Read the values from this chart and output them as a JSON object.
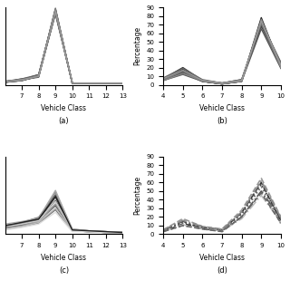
{
  "subplot_a": {
    "x": [
      6,
      7,
      8,
      9,
      10,
      11,
      12,
      13
    ],
    "xlabel": "Vehicle Class",
    "label": "(a)",
    "xlim": [
      6,
      13
    ],
    "ylim": [
      -2,
      90
    ],
    "yticks": [],
    "xticks": [
      7,
      8,
      9,
      10,
      11,
      12,
      13
    ],
    "curves": [
      [
        1,
        3,
        8,
        88,
        0,
        0,
        0,
        0
      ],
      [
        2,
        4,
        9,
        85,
        0,
        0,
        0,
        0
      ],
      [
        1,
        4,
        10,
        87,
        0,
        0,
        0,
        0
      ],
      [
        2,
        5,
        8,
        83,
        0,
        0,
        0,
        0
      ],
      [
        1,
        3,
        9,
        86,
        0,
        0,
        0,
        0
      ],
      [
        2,
        4,
        7,
        84,
        0,
        0,
        0,
        0
      ],
      [
        1,
        5,
        10,
        82,
        0,
        0,
        0,
        0
      ],
      [
        2,
        4,
        8,
        89,
        0,
        0,
        0,
        0
      ],
      [
        1,
        3,
        9,
        87,
        0,
        0,
        0,
        0
      ],
      [
        2,
        4,
        8,
        85,
        0,
        0,
        0,
        0
      ]
    ],
    "colors": [
      "#000000",
      "#111111",
      "#222222",
      "#333333",
      "#444444",
      "#555555",
      "#666666",
      "#777777",
      "#888888",
      "#999999"
    ],
    "linestyles": [
      "-",
      "-",
      "-",
      "-",
      "-",
      "-",
      "-",
      "-",
      "-",
      "-"
    ],
    "linewidths": [
      1.0,
      1.0,
      1.0,
      1.0,
      1.0,
      1.0,
      1.0,
      1.0,
      1.0,
      1.0
    ]
  },
  "subplot_b": {
    "x": [
      4,
      5,
      6,
      7,
      8,
      9,
      10
    ],
    "xlabel": "Vehicle Class",
    "ylabel": "Percentage",
    "label": "(b)",
    "xlim": [
      4,
      10
    ],
    "ylim": [
      0,
      90
    ],
    "yticks": [
      0,
      10,
      20,
      30,
      40,
      50,
      60,
      70,
      80,
      90
    ],
    "xticks": [
      4,
      5,
      6,
      7,
      8,
      9,
      10
    ],
    "curves": [
      [
        5,
        15,
        4,
        1,
        4,
        75,
        22
      ],
      [
        6,
        18,
        5,
        2,
        5,
        72,
        25
      ],
      [
        5,
        14,
        4,
        1,
        4,
        78,
        20
      ],
      [
        7,
        20,
        5,
        2,
        6,
        70,
        24
      ],
      [
        6,
        16,
        4,
        1,
        5,
        68,
        22
      ],
      [
        5,
        12,
        4,
        1,
        4,
        65,
        19
      ],
      [
        8,
        19,
        6,
        2,
        6,
        73,
        26
      ],
      [
        6,
        15,
        4,
        1,
        5,
        71,
        21
      ],
      [
        5,
        13,
        5,
        1,
        4,
        76,
        20
      ],
      [
        7,
        17,
        5,
        2,
        5,
        74,
        23
      ]
    ],
    "colors": [
      "#000000",
      "#111111",
      "#222222",
      "#333333",
      "#444444",
      "#555555",
      "#666666",
      "#777777",
      "#888888",
      "#999999"
    ],
    "linestyles": [
      "-",
      "-",
      "-",
      "-",
      "-",
      "-",
      "-",
      "-",
      "-",
      "-"
    ],
    "linewidths": [
      1.0,
      1.0,
      1.0,
      1.0,
      1.0,
      1.0,
      1.0,
      1.0,
      1.0,
      1.0
    ]
  },
  "subplot_c": {
    "x": [
      6,
      7,
      8,
      9,
      10,
      11,
      12,
      13
    ],
    "xlabel": "Vehicle Class",
    "label": "(c)",
    "xlim": [
      6,
      13
    ],
    "ylim": [
      -2,
      90
    ],
    "yticks": [],
    "xticks": [
      7,
      8,
      9,
      10,
      11,
      12,
      13
    ],
    "curves": [
      [
        6,
        8,
        12,
        38,
        2,
        1,
        0,
        0
      ],
      [
        8,
        10,
        15,
        42,
        3,
        1,
        1,
        0
      ],
      [
        5,
        9,
        14,
        32,
        2,
        1,
        0,
        0
      ],
      [
        7,
        12,
        18,
        45,
        3,
        2,
        1,
        0
      ],
      [
        4,
        7,
        11,
        27,
        2,
        1,
        0,
        0
      ],
      [
        9,
        11,
        16,
        48,
        4,
        2,
        1,
        0
      ],
      [
        5,
        8,
        13,
        34,
        2,
        1,
        0,
        0
      ],
      [
        10,
        13,
        17,
        50,
        4,
        2,
        1,
        0
      ],
      [
        4,
        7,
        12,
        29,
        2,
        1,
        0,
        0
      ],
      [
        7,
        10,
        14,
        37,
        3,
        1,
        0,
        0
      ],
      [
        3,
        6,
        10,
        24,
        1,
        1,
        0,
        0
      ],
      [
        8,
        12,
        16,
        43,
        3,
        2,
        1,
        0
      ]
    ],
    "colors": [
      "#333333",
      "#444444",
      "#555555",
      "#666666",
      "#777777",
      "#888888",
      "#999999",
      "#aaaaaa",
      "#bbbbbb",
      "#cccccc",
      "#dddddd",
      "#222222"
    ],
    "linestyles": [
      "-",
      "-",
      "-",
      "-",
      "-",
      "-",
      "-",
      "-",
      "-",
      "-",
      "-",
      "-"
    ],
    "linewidths": [
      1.0,
      1.0,
      1.0,
      1.0,
      1.0,
      1.0,
      1.0,
      1.0,
      1.0,
      1.0,
      1.0,
      1.0
    ]
  },
  "subplot_d": {
    "x": [
      4,
      5,
      6,
      7,
      8,
      9,
      10
    ],
    "xlabel": "Vehicle Class",
    "ylabel": "Percentage",
    "label": "(d)",
    "xlim": [
      4,
      10
    ],
    "ylim": [
      0,
      90
    ],
    "yticks": [
      0,
      10,
      20,
      30,
      40,
      50,
      60,
      70,
      80,
      90
    ],
    "xticks": [
      4,
      5,
      6,
      7,
      8,
      9,
      10
    ],
    "curves": [
      [
        3,
        12,
        8,
        5,
        25,
        60,
        15
      ],
      [
        4,
        15,
        6,
        4,
        20,
        50,
        18
      ],
      [
        3,
        10,
        7,
        3,
        22,
        55,
        12
      ],
      [
        5,
        18,
        9,
        6,
        28,
        65,
        20
      ],
      [
        3,
        11,
        6,
        4,
        18,
        45,
        14
      ],
      [
        4,
        14,
        8,
        5,
        24,
        58,
        17
      ],
      [
        3,
        10,
        6,
        3,
        20,
        48,
        13
      ],
      [
        5,
        16,
        9,
        5,
        26,
        62,
        19
      ]
    ],
    "colors": [
      "#333333",
      "#555555",
      "#777777",
      "#999999",
      "#bbbbbb",
      "#444444",
      "#666666",
      "#888888"
    ],
    "linestyles": [
      "--",
      "-.",
      ":",
      "--",
      "-.",
      ":",
      "--",
      "-."
    ],
    "linewidths": [
      1.2,
      1.2,
      1.2,
      1.2,
      1.2,
      1.2,
      1.2,
      1.2
    ]
  }
}
